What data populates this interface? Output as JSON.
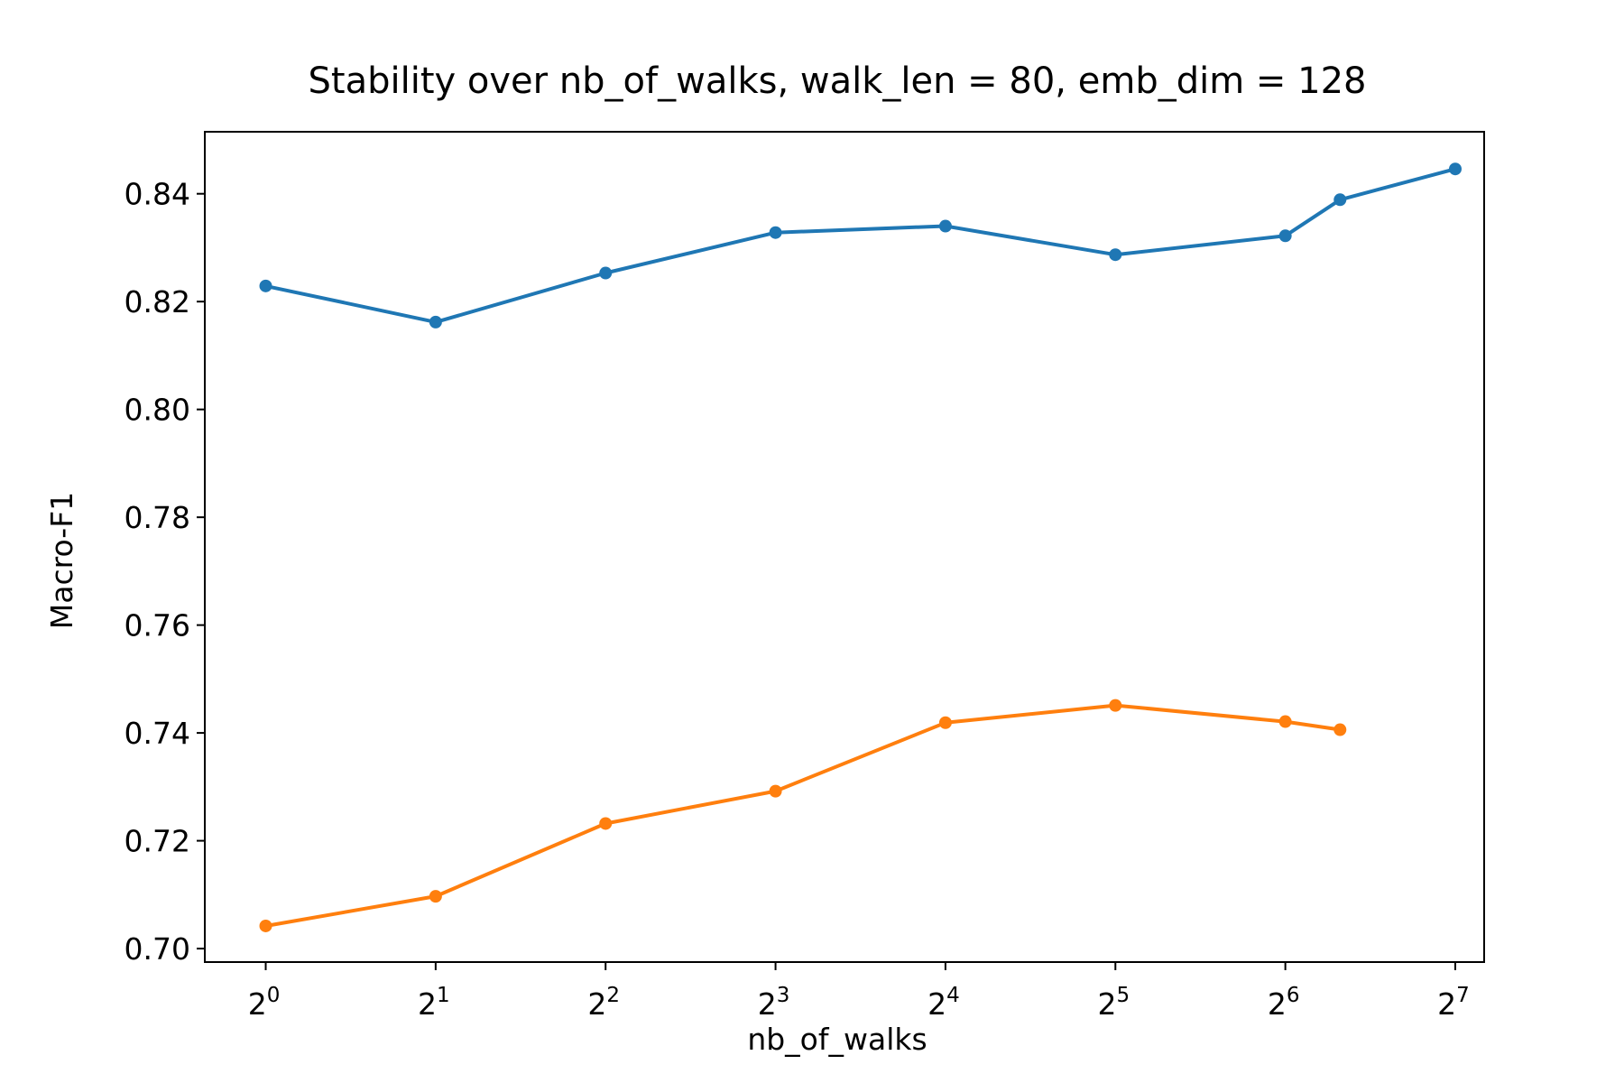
{
  "chart_data": {
    "type": "line",
    "title": "Stability over nb_of_walks, walk_len = 80, emb_dim = 128",
    "xlabel": "nb_of_walks",
    "ylabel": "Macro-F1",
    "xscale": "log2",
    "xlim": [
      0.78,
      144
    ],
    "ylim": [
      0.6975,
      0.8515
    ],
    "x_ticks": [
      {
        "value": 1,
        "base": "2",
        "exp": "0"
      },
      {
        "value": 2,
        "base": "2",
        "exp": "1"
      },
      {
        "value": 4,
        "base": "2",
        "exp": "2"
      },
      {
        "value": 8,
        "base": "2",
        "exp": "3"
      },
      {
        "value": 16,
        "base": "2",
        "exp": "4"
      },
      {
        "value": 32,
        "base": "2",
        "exp": "5"
      },
      {
        "value": 64,
        "base": "2",
        "exp": "6"
      },
      {
        "value": 128,
        "base": "2",
        "exp": "7"
      }
    ],
    "y_ticks": [
      "0.70",
      "0.72",
      "0.74",
      "0.76",
      "0.78",
      "0.80",
      "0.82",
      "0.84"
    ],
    "grid": false,
    "series": [
      {
        "color": "#1f77b4",
        "x": [
          1,
          2,
          4,
          8,
          16,
          32,
          64,
          80,
          128
        ],
        "y": [
          0.8229,
          0.8162,
          0.8253,
          0.8328,
          0.834,
          0.8287,
          0.8322,
          0.8389,
          0.8446
        ]
      },
      {
        "color": "#ff7f0e",
        "x": [
          1,
          2,
          4,
          8,
          16,
          32,
          64,
          80
        ],
        "y": [
          0.7042,
          0.7097,
          0.7232,
          0.7292,
          0.7419,
          0.7451,
          0.7421,
          0.7406
        ]
      }
    ]
  }
}
